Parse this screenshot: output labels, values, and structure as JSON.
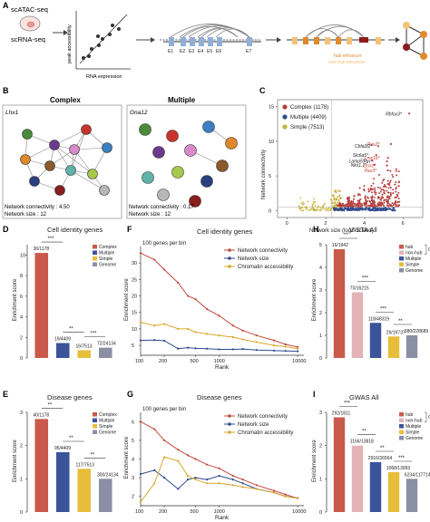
{
  "panel_letters": [
    "A",
    "B",
    "C",
    "D",
    "E",
    "F",
    "G",
    "H",
    "I"
  ],
  "panel_a": {
    "left_labels": [
      "scATAC-seq",
      "scRNA-seq"
    ],
    "scatter_ylabel": "peak accessibility",
    "scatter_xlabel": "RNA expression",
    "exon_labels": [
      "E1",
      "E2",
      "E3",
      "E4",
      "E5",
      "E6",
      "E7"
    ],
    "legend": [
      "hub enhancer",
      "non-hub enhancer"
    ],
    "colors": {
      "hub": "#e08a2c",
      "nonhub": "#f2c27a",
      "gene": "#8a1d1d",
      "exon": "#8fb0d8",
      "arc": "#888888"
    }
  },
  "panel_b": {
    "complex": {
      "title": "Complex",
      "gene": "Lhx1",
      "connectivity": "Network connectivity : 4.50",
      "size": "Network size : 12"
    },
    "multiple": {
      "title": "Multiple",
      "gene": "Gna12",
      "connectivity": "Network connectivity : 0.17",
      "size": "Network size : 12"
    }
  },
  "chart_data": [
    {
      "panel": "C",
      "type": "scatter",
      "xlabel": "Network size (log2-scaled)",
      "ylabel": "Network connectivity",
      "xlim": [
        -0.5,
        7
      ],
      "ylim": [
        -1,
        16
      ],
      "xticks": [
        0,
        2,
        4,
        6
      ],
      "yticks": [
        0,
        5,
        10,
        15
      ],
      "legend": [
        {
          "name": "Complex (1178)",
          "color": "#b5403f"
        },
        {
          "name": "Multiple (4409)",
          "color": "#2f4a8c"
        },
        {
          "name": "Simple (7513)",
          "color": "#c8b23a"
        }
      ],
      "annotations": [
        {
          "label": "Rbfox3",
          "x": 6.3,
          "y": 14.0,
          "color": "#222"
        },
        {
          "label": "Pax2",
          "x": 5.35,
          "y": 9.6,
          "color": "#c0392b"
        },
        {
          "label": "Cbfa2t2",
          "x": 4.7,
          "y": 9.3,
          "color": "#222"
        },
        {
          "label": "Slc6a5",
          "x": 4.6,
          "y": 8.0,
          "color": "#222"
        },
        {
          "label": "Lmx1b",
          "x": 5.2,
          "y": 7.6,
          "color": "#c0392b"
        },
        {
          "label": "Lamp5",
          "x": 4.4,
          "y": 7.2,
          "color": "#222"
        },
        {
          "label": "Ptn",
          "x": 5.15,
          "y": 7.1,
          "color": "#222"
        },
        {
          "label": "Nkx1.1",
          "x": 4.5,
          "y": 6.6,
          "color": "#222"
        },
        {
          "label": "Gsx1",
          "x": 5.15,
          "y": 6.5,
          "color": "#c0392b"
        },
        {
          "label": "Pax3",
          "x": 5.2,
          "y": 5.8,
          "color": "#c0392b"
        }
      ]
    },
    {
      "panel": "D",
      "type": "bar",
      "title": "Cell identity genes",
      "ylabel": "Enrichment score",
      "categories": [
        "Complex",
        "Multiple",
        "Simple",
        "Genome"
      ],
      "values": [
        10.2,
        1.45,
        0.75,
        1.0
      ],
      "bar_labels": [
        "36/1178",
        "19/4409",
        "16/7513",
        "72/24134"
      ],
      "colors": [
        "#c95a4b",
        "#3b5499",
        "#e7be3a",
        "#8a8fa3"
      ],
      "ylim": [
        0,
        11
      ],
      "yticks": [
        0,
        2,
        4,
        6,
        8,
        10
      ],
      "significance": [
        "***",
        "**",
        "***"
      ]
    },
    {
      "panel": "E",
      "type": "bar",
      "title": "Disease genes",
      "ylabel": "Enrichment score",
      "categories": [
        "Complex",
        "Multiple",
        "Simple",
        "Genome"
      ],
      "values": [
        2.8,
        1.8,
        1.3,
        1.0
      ],
      "bar_labels": [
        "40/1178",
        "95/4409",
        "117/7513",
        "300/24134"
      ],
      "colors": [
        "#c95a4b",
        "#3b5499",
        "#e7be3a",
        "#8a8fa3"
      ],
      "ylim": [
        0,
        3
      ],
      "yticks": [
        0,
        1,
        2,
        3
      ],
      "significance": [
        "**",
        "**",
        "**"
      ]
    },
    {
      "panel": "F",
      "type": "line",
      "title": "Cell identity genes",
      "subtitle": "100 genes per bin",
      "xlabel": "Rank",
      "ylabel": "Enrichment score",
      "xscale": "log",
      "xticks": [
        100,
        200,
        500,
        1000,
        10000
      ],
      "yticks": [
        5,
        10,
        15,
        20,
        25,
        30
      ],
      "ylim": [
        2,
        35
      ],
      "x": [
        100,
        150,
        200,
        300,
        400,
        500,
        700,
        1000,
        1500,
        2000,
        3000,
        5000,
        7000,
        10000
      ],
      "series": [
        {
          "name": "Network connectivity",
          "color": "#c0493e",
          "values": [
            33,
            31,
            28,
            24,
            20,
            19,
            16,
            14,
            11,
            9.5,
            8,
            6.5,
            5.3,
            4.5
          ]
        },
        {
          "name": "Network size",
          "color": "#2f4a8c",
          "values": [
            6.5,
            6.6,
            6.4,
            4.0,
            4.3,
            4.1,
            4.0,
            3.8,
            3.8,
            3.9,
            3.6,
            3.4,
            3.3,
            3.2
          ]
        },
        {
          "name": "Chromatin accessibility",
          "color": "#d9a92e",
          "values": [
            12,
            11,
            11.5,
            10,
            10,
            9,
            8.5,
            8,
            7.5,
            6.8,
            6,
            5,
            4.6,
            4
          ]
        }
      ]
    },
    {
      "panel": "G",
      "type": "line",
      "title": "Disease genes",
      "subtitle": "100 genes per bin",
      "xlabel": "Rank",
      "ylabel": "Enrichment score",
      "xscale": "log",
      "xticks": [
        100,
        200,
        500,
        1000,
        10000
      ],
      "yticks": [
        2,
        3,
        4,
        5,
        6
      ],
      "ylim": [
        1.5,
        6.5
      ],
      "x": [
        100,
        150,
        200,
        300,
        400,
        500,
        700,
        1000,
        1500,
        2000,
        3000,
        5000,
        7000,
        10000
      ],
      "series": [
        {
          "name": "Network connectivity",
          "color": "#c0493e",
          "values": [
            6.0,
            5.6,
            5.0,
            4.5,
            4.2,
            4.0,
            3.7,
            3.5,
            3.1,
            2.9,
            2.6,
            2.3,
            2.1,
            1.9
          ]
        },
        {
          "name": "Network size",
          "color": "#2f4a8c",
          "values": [
            3.2,
            3.4,
            3.0,
            2.4,
            2.9,
            3.0,
            2.9,
            3.1,
            2.9,
            2.7,
            2.4,
            2.2,
            2.0,
            1.9
          ]
        },
        {
          "name": "Chromatin accessibility",
          "color": "#d9a92e",
          "values": [
            1.7,
            2.7,
            4.1,
            3.9,
            3.1,
            2.9,
            2.7,
            2.7,
            2.6,
            2.5,
            2.4,
            2.2,
            2.0,
            1.9
          ]
        }
      ]
    },
    {
      "panel": "H",
      "type": "bar",
      "title": "VISTA All",
      "ylabel": "Enrichment score",
      "categories": [
        "hub",
        "non-hub",
        "Multiple",
        "Simple",
        "Genome"
      ],
      "values": [
        4.8,
        2.9,
        1.55,
        0.95,
        1.0
      ],
      "bar_labels": [
        "16/1942",
        "70/16215",
        "118/48319",
        "29/19737",
        "380/228689"
      ],
      "colors": [
        "#c95a4b",
        "#e3b3b7",
        "#3b5499",
        "#e7be3a",
        "#8a8fa3"
      ],
      "ylim": [
        0,
        5
      ],
      "yticks": [
        0,
        1,
        2,
        3,
        4,
        5
      ],
      "group_label": "Complex",
      "significance": [
        "**",
        "***",
        "***",
        "**"
      ]
    },
    {
      "panel": "I",
      "type": "bar",
      "title": "GWAS All",
      "ylabel": "Enrichment score",
      "categories": [
        "hub",
        "non-hub",
        "Multiple",
        "Simple",
        "Genome"
      ],
      "values": [
        2.85,
        2.0,
        1.5,
        1.2,
        1.0
      ],
      "bar_labels": [
        "292/1811",
        "1166/13818",
        "2916/36564",
        "1068/13993",
        "6234/117714"
      ],
      "colors": [
        "#c95a4b",
        "#e3b3b7",
        "#3b5499",
        "#e7be3a",
        "#8a8fa3"
      ],
      "ylim": [
        0,
        3
      ],
      "yticks": [
        0,
        1,
        2,
        3
      ],
      "group_label": "Complex",
      "significance": [
        "***",
        "**",
        "**",
        "***"
      ]
    }
  ]
}
